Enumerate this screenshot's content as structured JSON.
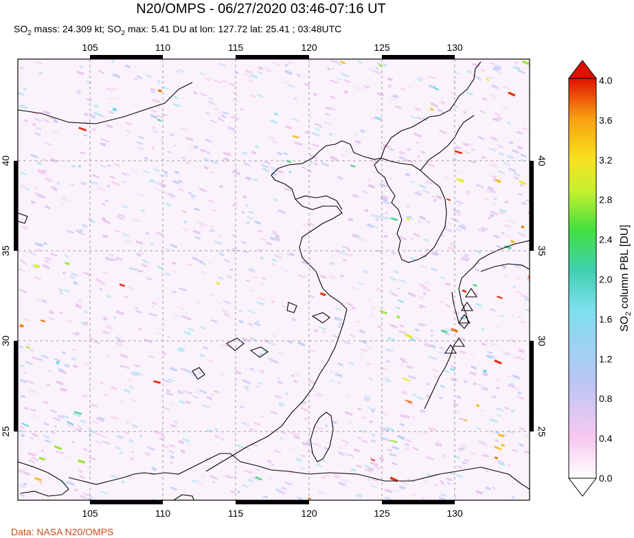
{
  "title": "N20/OMPS - 06/27/2020 03:46-07:16 UT",
  "subtitle": {
    "so2_a": "SO",
    "so2_sub": "2",
    "mass_text": " mass: 24.309 kt; SO",
    "so2_sub_2": "2",
    "max_text": " max: 5.41 DU at lon: 127.72 lat: 25.41 ; 03:48UTC"
  },
  "footer": "Data: NASA N20/OMPS",
  "map": {
    "lon_range": [
      100,
      135
    ],
    "lat_range": [
      20.5,
      45
    ],
    "lon_ticks": [
      "105",
      "110",
      "115",
      "120",
      "125",
      "130"
    ],
    "lat_ticks": [
      "25",
      "30",
      "35",
      "40"
    ],
    "volcano_icon": "triangle-volcano-icon"
  },
  "colorbar": {
    "label_main": "SO",
    "label_sub": "2",
    "label_rest": " column PBL [DU]",
    "ticks": [
      "4.0",
      "3.6",
      "3.2",
      "2.8",
      "2.4",
      "2.0",
      "1.6",
      "1.2",
      "0.8",
      "0.4",
      "0.0"
    ],
    "colors": [
      "#ffffff",
      "#f7c8f0",
      "#b8c6f5",
      "#7de0ee",
      "#40d0b0",
      "#40e040",
      "#c8f030",
      "#f8e020",
      "#f8a010",
      "#f05010",
      "#e01000"
    ]
  }
}
